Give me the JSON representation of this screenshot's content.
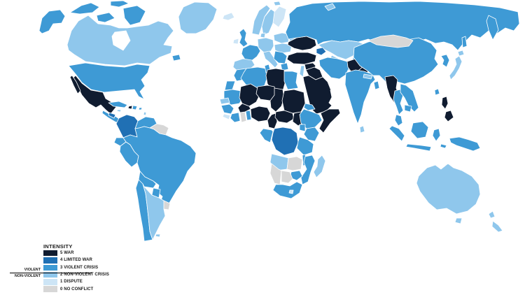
{
  "page": {
    "background": "#ffffff"
  },
  "legend": {
    "title": "INTENSITY",
    "divider_note": {
      "above": "VIOLENT",
      "below": "NON-VIOLENT"
    },
    "items": [
      {
        "level": 5,
        "label": "5 WAR",
        "color": "#101c30",
        "group": "VIOLENT"
      },
      {
        "level": 4,
        "label": "4 LIMITED WAR",
        "color": "#2070b4",
        "group": "VIOLENT"
      },
      {
        "level": 3,
        "label": "3 VIOLENT CRISIS",
        "color": "#3e9ad5",
        "group": "VIOLENT"
      },
      {
        "level": 2,
        "label": "2 NON-VIOLENT CRISIS",
        "color": "#8fc7ec",
        "group": "NON-VIOLENT"
      },
      {
        "level": 1,
        "label": "1 DISPUTE",
        "color": "#cde5f6",
        "group": "NON-VIOLENT"
      },
      {
        "level": 0,
        "label": "0 NO CONFLICT",
        "color": "#d7d7d7",
        "group": "NON-VIOLENT"
      }
    ]
  },
  "map": {
    "type": "choropleth",
    "description": "World map of conflict intensity by country/region",
    "border_color": "#ffffff",
    "no_data_color": "#ffffff",
    "regions": {
      "alaska": 3,
      "canadian_arctic": 3,
      "canada": 2,
      "newfoundland": 3,
      "greenland": 2,
      "iceland": 1,
      "usa": 3,
      "mexico": 5,
      "guatemala_panama": 3,
      "honduras": 4,
      "cuba": 3,
      "haiti": 5,
      "dominican_republic": 3,
      "jamaica": 2,
      "puerto_rico": 3,
      "lesser_antilles": 2,
      "colombia": 4,
      "venezuela": 3,
      "guyanas": 0,
      "ecuador": 3,
      "peru": 3,
      "brazil": 3,
      "bolivia": 3,
      "paraguay": 3,
      "chile": 3,
      "argentina": 2,
      "uruguay": 0,
      "falklands": 2,
      "uk": 3,
      "ireland": 1,
      "norway": 2,
      "sweden": 2,
      "finland": 1,
      "denmark": 2,
      "germany_central_europe": 2,
      "poland_baltics": 2,
      "belarus": 2,
      "france": 3,
      "spain_portugal": 2,
      "italy": 2,
      "balkans": 3,
      "romania_hungary": 2,
      "greece": 3,
      "ukraine": 5,
      "russia": 3,
      "kamchatka": 3,
      "sakhalin": 3,
      "novaya_zemlya": 2,
      "svalbard": 2,
      "kazakhstan": 2,
      "central_asia": 2,
      "kyrgyz_tajik": 3,
      "caucasus": 4,
      "turkey": 5,
      "syria": 5,
      "iraq": 5,
      "levant": 2,
      "saudi_yemen": 5,
      "oman_uae": null,
      "iran": 3,
      "afghanistan": 5,
      "pakistan": 5,
      "morocco": 3,
      "western_sahara": 3,
      "algeria": 3,
      "tunisia": 3,
      "libya": 5,
      "egypt": 3,
      "mauritania": 3,
      "mali": 5,
      "niger": 5,
      "chad": 5,
      "sudan": 5,
      "senegal": 2,
      "guinea": 3,
      "sierra_liberia": 1,
      "cote_divoire": 3,
      "ghana": 0,
      "togo_benin": 3,
      "burkina_faso": 5,
      "nigeria": 5,
      "cameroon": 5,
      "car": 5,
      "south_sudan": 5,
      "eritrea": 3,
      "ethiopia": 3,
      "somalia": 5,
      "kenya": 3,
      "uganda": 3,
      "drc": 4,
      "congo_gabon": 3,
      "tanzania": 3,
      "angola": 2,
      "zambia": 0,
      "malawi": 3,
      "mozambique": 3,
      "zimbabwe": 3,
      "namibia": 0,
      "botswana": 0,
      "south_africa": 3,
      "lesotho": 1,
      "madagascar": 2,
      "india": 3,
      "nepal_bhutan": 2,
      "bangladesh": 3,
      "sri_lanka": 2,
      "china": 3,
      "mongolia": 0,
      "koreas": 3,
      "japan": 2,
      "hokkaido": 2,
      "taiwan": 3,
      "myanmar": 5,
      "thailand": 3,
      "laos_vietnam": 3,
      "cambodia": 3,
      "malaysia": 3,
      "sumatra": 3,
      "borneo": 3,
      "java": 3,
      "sulawesi": 3,
      "timor": 3,
      "philippines": 5,
      "new_guinea": 3,
      "australia": 2,
      "tasmania": 2,
      "new_zealand": 2
    }
  }
}
